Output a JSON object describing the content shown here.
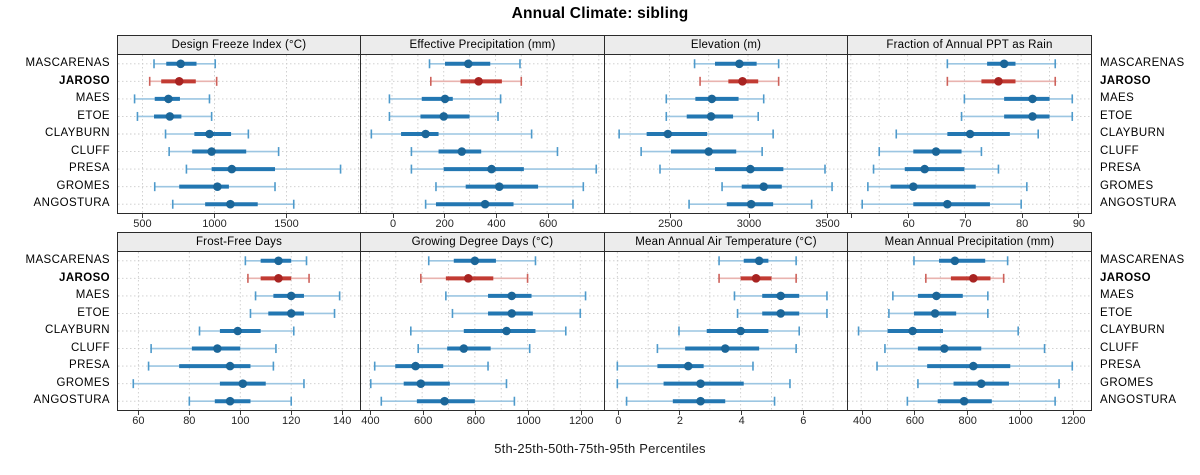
{
  "title": "Annual Climate: sibling",
  "footer": "5th-25th-50th-75th-95th Percentiles",
  "colors": {
    "blue_dot": "#1B6699",
    "blue_bar": "#2377B2",
    "blue_whisker": "#9CC6E2",
    "blue_cap": "#4E9ACB",
    "red_dot": "#A82321",
    "red_bar": "#C23B33",
    "red_whisker": "#E9B3AF",
    "red_cap": "#CD615A",
    "gridline": "#CBCBCB",
    "panel_border": "#2B2B2B",
    "header_bg": "#ECECEC"
  },
  "chart_data": {
    "type": "dotplot",
    "subtype": "percentile-range-trellis",
    "layout": {
      "rows": 2,
      "cols": 4
    },
    "percentile_levels": [
      5,
      25,
      50,
      75,
      95
    ],
    "stations": [
      "MASCARENAS",
      "JAROSO",
      "MAES",
      "ETOE",
      "CLAYBURN",
      "CLUFF",
      "PRESA",
      "GROMES",
      "ANGOSTURA"
    ],
    "highlight_station": "JAROSO",
    "grid": "dashed",
    "panels": [
      {
        "title": "Design Freeze Index (°C)",
        "slug": "design-freeze-index",
        "row": 0,
        "col": 0,
        "xlim": [
          330,
          2010
        ],
        "gridlines": [
          500,
          1000,
          1500,
          2000
        ],
        "tick_values": [
          500,
          1000,
          1500
        ],
        "tick_labels": [
          "500",
          "1000",
          "1500"
        ],
        "values": [
          [
            580,
            665,
            765,
            875,
            1005
          ],
          [
            550,
            630,
            755,
            870,
            1015
          ],
          [
            445,
            585,
            680,
            760,
            965
          ],
          [
            465,
            580,
            690,
            770,
            980
          ],
          [
            660,
            860,
            965,
            1115,
            1235
          ],
          [
            685,
            845,
            980,
            1220,
            1445
          ],
          [
            805,
            980,
            1120,
            1420,
            1875
          ],
          [
            585,
            755,
            1020,
            1100,
            1420
          ],
          [
            710,
            935,
            1110,
            1300,
            1550
          ]
        ]
      },
      {
        "title": "Effective Precipitation (mm)",
        "slug": "effective-precipitation",
        "row": 0,
        "col": 1,
        "xlim": [
          -120,
          820
        ],
        "gridlines": [
          -100,
          0,
          100,
          200,
          300,
          400,
          500,
          600,
          700,
          800
        ],
        "tick_values": [
          0,
          200,
          400,
          600
        ],
        "tick_labels": [
          "0",
          "200",
          "400",
          "600"
        ],
        "values": [
          [
            145,
            205,
            295,
            380,
            495
          ],
          [
            150,
            265,
            335,
            425,
            500
          ],
          [
            -10,
            115,
            205,
            235,
            420
          ],
          [
            -10,
            110,
            200,
            300,
            410
          ],
          [
            -80,
            35,
            130,
            180,
            540
          ],
          [
            75,
            180,
            270,
            345,
            640
          ],
          [
            75,
            200,
            385,
            510,
            790
          ],
          [
            170,
            285,
            415,
            565,
            740
          ],
          [
            130,
            170,
            360,
            470,
            700
          ]
        ]
      },
      {
        "title": "Elevation (m)",
        "slug": "elevation",
        "row": 0,
        "col": 2,
        "xlim": [
          2090,
          3630
        ],
        "gridlines": [
          2250,
          2500,
          2750,
          3000,
          3250,
          3500
        ],
        "tick_values": [
          2500,
          3000,
          3500
        ],
        "tick_labels": [
          "2500",
          "3000",
          "3500"
        ],
        "values": [
          [
            2660,
            2790,
            2945,
            3055,
            3195
          ],
          [
            2695,
            2875,
            2965,
            3065,
            3195
          ],
          [
            2480,
            2665,
            2770,
            2940,
            3100
          ],
          [
            2480,
            2610,
            2765,
            2905,
            3065
          ],
          [
            2180,
            2355,
            2490,
            2740,
            3160
          ],
          [
            2320,
            2510,
            2750,
            2925,
            3090
          ],
          [
            2440,
            2790,
            3015,
            3225,
            3490
          ],
          [
            2835,
            2960,
            3100,
            3215,
            3535
          ],
          [
            2625,
            2865,
            3020,
            3160,
            3405
          ]
        ]
      },
      {
        "title": "Fraction of Annual PPT as Rain",
        "slug": "fraction-annual-ppt-as-rain",
        "row": 0,
        "col": 3,
        "xlim": [
          49.5,
          92.3
        ],
        "gridlines": [
          50,
          55,
          60,
          65,
          70,
          75,
          80,
          85,
          90
        ],
        "tick_values": [
          50,
          60,
          70,
          80,
          90
        ],
        "tick_labels": [
          "",
          "60",
          "70",
          "80",
          "90"
        ],
        "values": [
          [
            67,
            74,
            77,
            79,
            86
          ],
          [
            67,
            73,
            76,
            79,
            86
          ],
          [
            70,
            77,
            82,
            85,
            89
          ],
          [
            69.5,
            77,
            82,
            85,
            89
          ],
          [
            58,
            67,
            71,
            78,
            83
          ],
          [
            55,
            61,
            65,
            69.5,
            73
          ],
          [
            54,
            59.5,
            63,
            70,
            76
          ],
          [
            53,
            57,
            61,
            72,
            81
          ],
          [
            52,
            61,
            67,
            74.5,
            80
          ]
        ]
      },
      {
        "title": "Frost-Free Days",
        "slug": "frost-free-days",
        "row": 1,
        "col": 0,
        "xlim": [
          52,
          147
        ],
        "gridlines": [
          60,
          80,
          100,
          120,
          140
        ],
        "tick_values": [
          60,
          80,
          100,
          120,
          140
        ],
        "tick_labels": [
          "60",
          "80",
          "100",
          "120",
          "140"
        ],
        "values": [
          [
            102,
            108,
            115,
            120,
            126
          ],
          [
            103,
            108,
            115,
            120,
            127
          ],
          [
            106,
            113,
            120,
            125,
            139
          ],
          [
            104,
            111,
            120,
            125,
            137
          ],
          [
            84,
            92,
            99,
            108,
            121
          ],
          [
            65,
            81,
            91,
            100,
            114
          ],
          [
            64,
            76,
            96,
            104,
            113
          ],
          [
            58,
            92,
            101,
            110,
            125
          ],
          [
            80,
            90,
            96,
            104,
            120
          ]
        ]
      },
      {
        "title": "Growing Degree Days (°C)",
        "slug": "growing-degree-days",
        "row": 1,
        "col": 1,
        "xlim": [
          368,
          1290
        ],
        "gridlines": [
          400,
          500,
          600,
          700,
          800,
          900,
          1000,
          1100,
          1200
        ],
        "tick_values": [
          400,
          600,
          800,
          1000,
          1200
        ],
        "tick_labels": [
          "400",
          "600",
          "800",
          "1000",
          "1200"
        ],
        "values": [
          [
            625,
            720,
            800,
            880,
            1030
          ],
          [
            595,
            690,
            775,
            870,
            1000
          ],
          [
            690,
            850,
            940,
            1015,
            1220
          ],
          [
            715,
            850,
            940,
            1020,
            1200
          ],
          [
            557,
            758,
            920,
            1030,
            1145
          ],
          [
            585,
            695,
            758,
            860,
            1008
          ],
          [
            420,
            498,
            575,
            680,
            850
          ],
          [
            405,
            530,
            595,
            705,
            920
          ],
          [
            445,
            580,
            685,
            800,
            950
          ]
        ]
      },
      {
        "title": "Mean Annual Air Temperature (°C)",
        "slug": "mean-annual-air-temperature",
        "row": 1,
        "col": 2,
        "xlim": [
          -0.4,
          7.45
        ],
        "gridlines": [
          0,
          1,
          2,
          3,
          4,
          5,
          6,
          7
        ],
        "tick_values": [
          0,
          2,
          4,
          6
        ],
        "tick_labels": [
          "0",
          "2",
          "4",
          "6"
        ],
        "values": [
          [
            3.3,
            4.1,
            4.6,
            4.9,
            5.8
          ],
          [
            3.3,
            4.0,
            4.5,
            5.0,
            5.8
          ],
          [
            3.8,
            4.7,
            5.3,
            5.9,
            6.8
          ],
          [
            3.9,
            4.7,
            5.3,
            5.9,
            6.8
          ],
          [
            2.0,
            2.9,
            4.0,
            4.9,
            5.9
          ],
          [
            1.3,
            2.2,
            3.5,
            4.6,
            5.8
          ],
          [
            0.0,
            1.3,
            2.3,
            2.8,
            4.4
          ],
          [
            0.0,
            1.5,
            2.7,
            4.1,
            5.6
          ],
          [
            0.3,
            1.8,
            2.7,
            3.5,
            5.1
          ]
        ]
      },
      {
        "title": "Mean Annual Precipitation (mm)",
        "slug": "mean-annual-precipitation",
        "row": 1,
        "col": 3,
        "xlim": [
          350,
          1271
        ],
        "gridlines": [
          400,
          500,
          600,
          700,
          800,
          900,
          1000,
          1100,
          1200
        ],
        "tick_values": [
          400,
          600,
          800,
          1000,
          1200
        ],
        "tick_labels": [
          "400",
          "600",
          "800",
          "1000",
          "1200"
        ],
        "values": [
          [
            600,
            695,
            755,
            870,
            955
          ],
          [
            645,
            740,
            825,
            890,
            940
          ],
          [
            520,
            615,
            685,
            785,
            880
          ],
          [
            505,
            600,
            680,
            760,
            880
          ],
          [
            390,
            500,
            595,
            710,
            995
          ],
          [
            490,
            615,
            715,
            855,
            1095
          ],
          [
            460,
            650,
            825,
            965,
            1200
          ],
          [
            615,
            750,
            855,
            960,
            1150
          ],
          [
            575,
            690,
            790,
            895,
            1135
          ]
        ]
      }
    ]
  }
}
